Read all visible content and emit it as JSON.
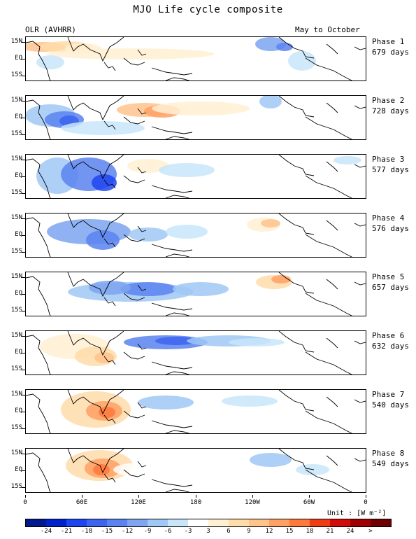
{
  "title": "MJO Life cycle composite",
  "variable_label": "OLR (AVHRR)",
  "season_label": "May to October",
  "lat_labels": [
    "15N",
    "EQ",
    "15S"
  ],
  "lon_labels": [
    "0",
    "60E",
    "120E",
    "180",
    "120W",
    "60W",
    "0"
  ],
  "unit_label": "Unit : [W m⁻²]",
  "colorbar": {
    "labels": [
      "-24",
      "-21",
      "-18",
      "-15",
      "-12",
      "-9",
      "-6",
      "-3",
      "3",
      "6",
      "9",
      "12",
      "15",
      "18",
      "21",
      "24",
      ">"
    ],
    "colors": [
      "#001a8c",
      "#0022cc",
      "#1e46f0",
      "#3c64f0",
      "#5a82f0",
      "#7da5f0",
      "#a0c8f5",
      "#c8e6fa",
      "#ffffff",
      "#fff0d2",
      "#ffdcaa",
      "#ffc38c",
      "#ffa064",
      "#ff783c",
      "#f03c14",
      "#d20a0a",
      "#a00000",
      "#6e0000"
    ]
  },
  "phases": [
    {
      "name": "Phase 1",
      "days": "679 days"
    },
    {
      "name": "Phase 2",
      "days": "728 days"
    },
    {
      "name": "Phase 3",
      "days": "577 days"
    },
    {
      "name": "Phase 4",
      "days": "576 days"
    },
    {
      "name": "Phase 5",
      "days": "657 days"
    },
    {
      "name": "Phase 6",
      "days": "632 days"
    },
    {
      "name": "Phase 7",
      "days": "540 days"
    },
    {
      "name": "Phase 8",
      "days": "549 days"
    }
  ]
}
